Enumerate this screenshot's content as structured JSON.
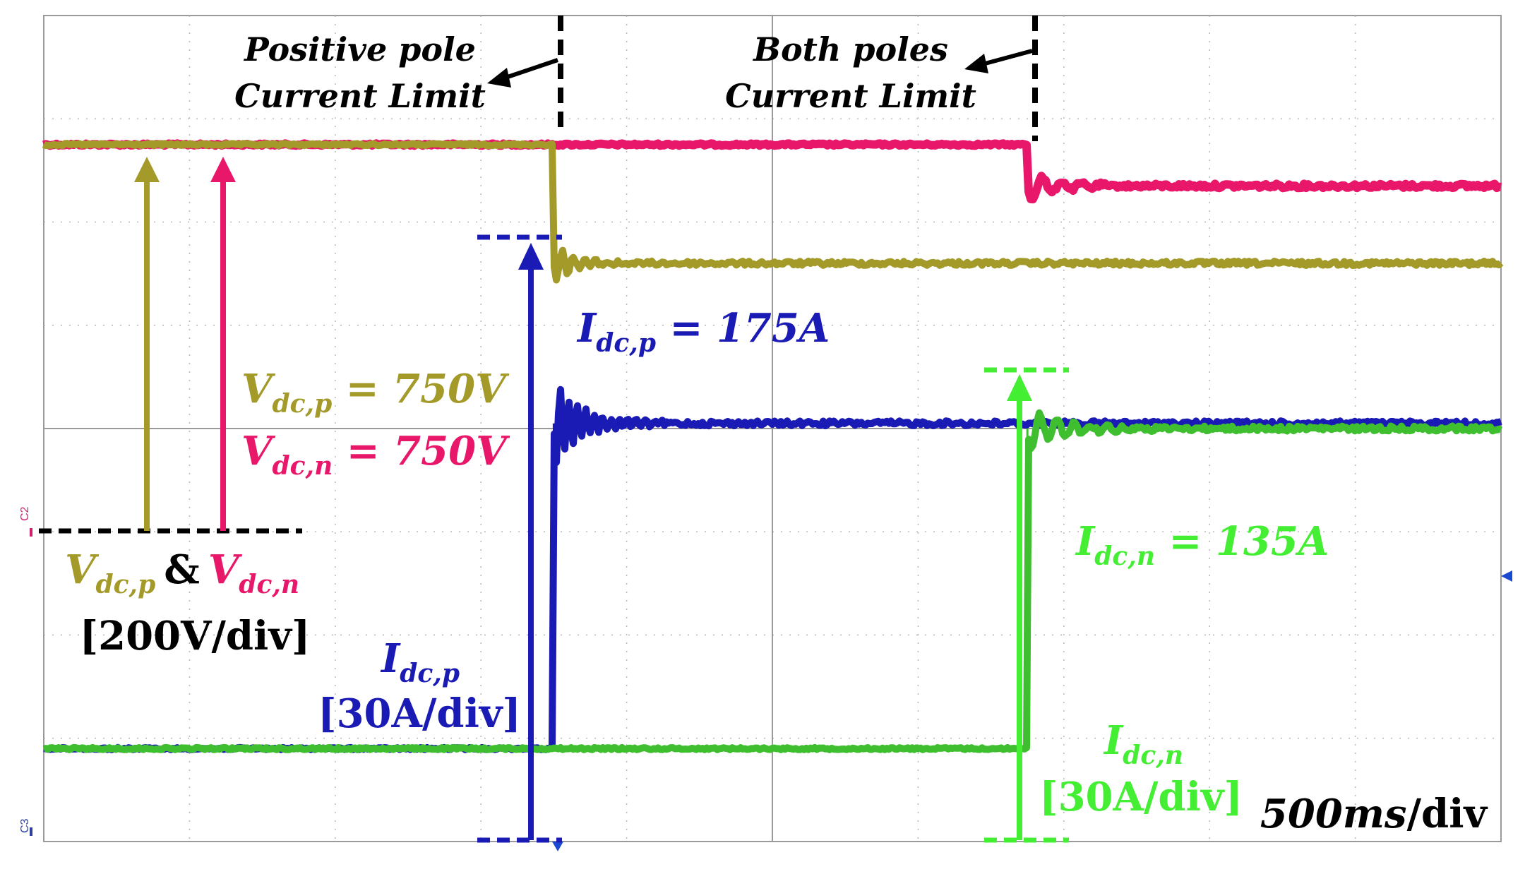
{
  "chart_data": {
    "type": "line",
    "title": "",
    "grid": true,
    "axes_units": "divisions",
    "x_range_div": [
      0,
      10
    ],
    "y_range_div": [
      -4,
      4
    ],
    "time_per_div": "500ms/div",
    "events": {
      "positive_pole_limit_div": 3.5,
      "both_poles_limit_div": 6.75
    },
    "series": [
      {
        "name": "V_dc,n",
        "color": "#e8176a",
        "pre_event_level_div": 2.75,
        "final_level_div": 2.35,
        "transition_at_div": 6.75
      },
      {
        "name": "V_dc,p",
        "color": "#a39a2a",
        "pre_event_level_div": 2.75,
        "final_level_div": 1.6,
        "transition_at_div": 3.5
      },
      {
        "name": "I_dc,p",
        "color": "#1a1ab4",
        "pre_event_level_div": -3.1,
        "final_level_div": 0.05,
        "transition_at_div": 3.5
      },
      {
        "name": "I_dc,n",
        "color": "#3fbf2f",
        "pre_event_level_div": -3.1,
        "final_level_div": 0.0,
        "transition_at_div": 6.75
      }
    ]
  },
  "annotations": {
    "event1_line1": "Positive pole",
    "event1_line2": "Current Limit",
    "event2_line1": "Both poles",
    "event2_line2": "Current Limit",
    "vp_value": "750V",
    "vn_value": "750V",
    "idcp_value": "175A",
    "idcn_value": "135A",
    "v_scale": "[200V/div]",
    "idcp_scale": "[30A/div]",
    "idcn_scale": "[30A/div]",
    "amp": "&",
    "eq": " = ",
    "sym_V": "V",
    "sym_I": "I",
    "sub_dcp": "dc,p",
    "sub_dcn": "dc,n",
    "timebase_num": "500",
    "timebase_unit": "ms",
    "timebase_rest": "/div",
    "ch2_marker": "C2",
    "ch3_marker": "C3"
  }
}
